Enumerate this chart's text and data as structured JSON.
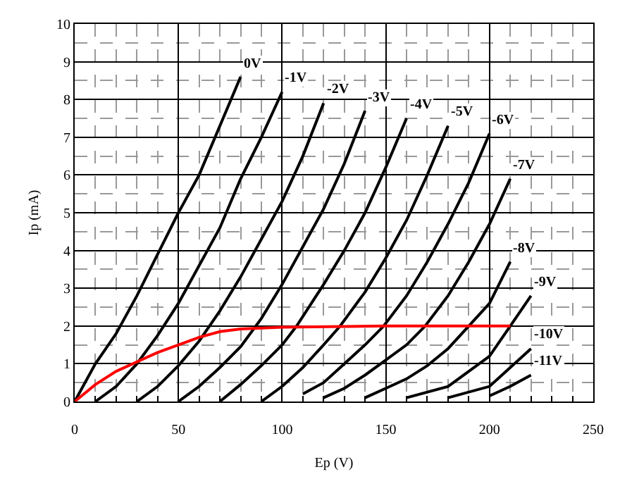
{
  "chart_data": {
    "type": "line",
    "xlabel": "Ep (V)",
    "ylabel": "Ip (mA)",
    "xlim": [
      0,
      250
    ],
    "xticks": [
      0,
      50,
      100,
      150,
      200,
      250
    ],
    "ylim": [
      0,
      10
    ],
    "yticks": [
      0,
      1,
      2,
      3,
      4,
      5,
      6,
      7,
      8,
      9,
      10
    ],
    "grid": true,
    "legend": false,
    "marker": "none",
    "line_style": "solid",
    "series": [
      {
        "name": "0V",
        "color": "#000000",
        "x": [
          0,
          10,
          20,
          30,
          40,
          50,
          60,
          70,
          80
        ],
        "values": [
          0,
          1,
          1.8,
          2.8,
          3.9,
          5,
          6,
          7.3,
          8.6
        ]
      },
      {
        "name": "-1V",
        "color": "#000000",
        "x": [
          10,
          20,
          30,
          40,
          50,
          60,
          70,
          80,
          90,
          100
        ],
        "values": [
          0,
          0.4,
          1,
          1.75,
          2.6,
          3.6,
          4.6,
          5.9,
          7,
          8.2
        ]
      },
      {
        "name": "-2V",
        "color": "#000000",
        "x": [
          30,
          40,
          50,
          60,
          70,
          80,
          90,
          100,
          110,
          120
        ],
        "values": [
          0,
          0.4,
          0.95,
          1.6,
          2.4,
          3.3,
          4.3,
          5.3,
          6.5,
          7.9
        ]
      },
      {
        "name": "-3V",
        "color": "#000000",
        "x": [
          50,
          60,
          70,
          80,
          90,
          100,
          110,
          120,
          130,
          140
        ],
        "values": [
          0,
          0.4,
          0.9,
          1.45,
          2.2,
          3.1,
          4.1,
          5.1,
          6.3,
          7.7
        ]
      },
      {
        "name": "-4V",
        "color": "#000000",
        "x": [
          70,
          80,
          90,
          100,
          107,
          120,
          130,
          140,
          150,
          160
        ],
        "values": [
          0,
          0.45,
          0.95,
          1.5,
          2,
          3.1,
          4,
          5,
          6.2,
          7.5
        ]
      },
      {
        "name": "-5V",
        "color": "#000000",
        "x": [
          90,
          100,
          110,
          120,
          128,
          140,
          150,
          160,
          170,
          180
        ],
        "values": [
          0,
          0.4,
          0.9,
          1.5,
          2,
          2.9,
          3.8,
          4.8,
          6,
          7.3
        ]
      },
      {
        "name": "-6V",
        "color": "#000000",
        "x": [
          110,
          120,
          130,
          140,
          149,
          160,
          170,
          180,
          190,
          200
        ],
        "values": [
          0.2,
          0.5,
          1,
          1.5,
          2,
          2.8,
          3.7,
          4.7,
          5.8,
          7.1
        ]
      },
      {
        "name": "-7V",
        "color": "#000000",
        "x": [
          120,
          130,
          140,
          150,
          160,
          169,
          180,
          190,
          200,
          210
        ],
        "values": [
          0.1,
          0.35,
          0.7,
          1.1,
          1.5,
          2,
          2.8,
          3.7,
          4.7,
          5.9
        ]
      },
      {
        "name": "-8V",
        "color": "#000000",
        "x": [
          140,
          150,
          160,
          170,
          180,
          190,
          200,
          210
        ],
        "values": [
          0.1,
          0.35,
          0.6,
          0.95,
          1.4,
          2,
          2.6,
          3.7
        ]
      },
      {
        "name": "-9V",
        "color": "#000000",
        "x": [
          160,
          180,
          200,
          210,
          220
        ],
        "values": [
          0.1,
          0.4,
          1.2,
          2,
          2.8
        ]
      },
      {
        "name": "-10V",
        "color": "#000000",
        "x": [
          180,
          200,
          210,
          220
        ],
        "values": [
          0.1,
          0.4,
          0.9,
          1.4
        ]
      },
      {
        "name": "-11V",
        "color": "#000000",
        "x": [
          200,
          210,
          220
        ],
        "values": [
          0.15,
          0.4,
          0.7
        ]
      },
      {
        "color": "#ff0000",
        "x": [
          0,
          10,
          20,
          30,
          40,
          50,
          60,
          70,
          80,
          100,
          150,
          210
        ],
        "values": [
          0,
          0.45,
          0.8,
          1.05,
          1.3,
          1.5,
          1.7,
          1.85,
          1.92,
          1.97,
          2,
          2
        ]
      }
    ]
  }
}
